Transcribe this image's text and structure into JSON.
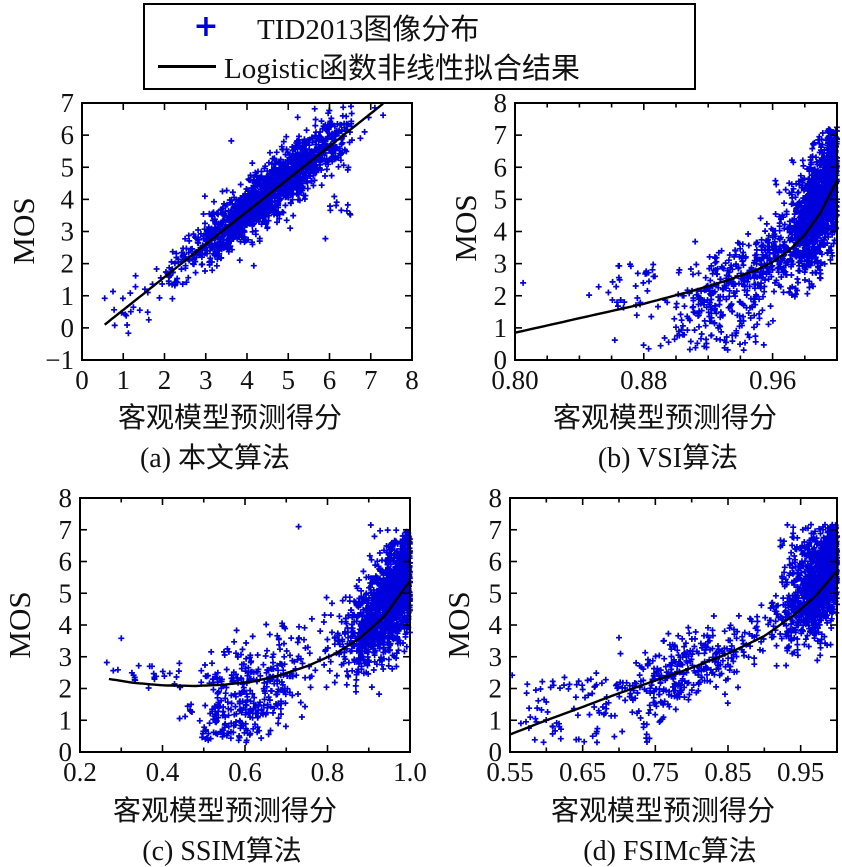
{
  "figure": {
    "background": "#ffffff",
    "scatter_color": "#0000dd",
    "line_color": "#000000",
    "axis_color": "#000000"
  },
  "legend": {
    "entries": [
      {
        "symbol": "+",
        "marker": "plus-marker",
        "color": "#0000dd",
        "label": "TID2013图像分布"
      },
      {
        "symbol": "—",
        "marker": "line-marker",
        "color": "#000000",
        "label": "Logistic函数非线性拟合结果"
      }
    ]
  },
  "chart_data": [
    {
      "id": "a",
      "type": "scatter",
      "caption": "(a) 本文算法",
      "xlabel": "客观模型预测得分",
      "ylabel": "MOS",
      "xlim": [
        0,
        8
      ],
      "ylim": [
        -1,
        7
      ],
      "xticks": [
        0,
        1,
        2,
        3,
        4,
        5,
        6,
        7,
        8
      ],
      "xtick_labels": [
        [
          0,
          "0"
        ],
        [
          1,
          "1"
        ],
        [
          2,
          "2"
        ],
        [
          3,
          "3"
        ],
        [
          4,
          "4"
        ],
        [
          5,
          "5"
        ],
        [
          6,
          "6"
        ],
        [
          7,
          "7"
        ],
        [
          8,
          "8"
        ]
      ],
      "yticks": [
        -1,
        0,
        1,
        2,
        3,
        4,
        5,
        6,
        7
      ],
      "ytick_labels": [
        [
          -1,
          "−1"
        ],
        [
          0,
          "0"
        ],
        [
          1,
          "1"
        ],
        [
          2,
          "2"
        ],
        [
          3,
          "3"
        ],
        [
          4,
          "4"
        ],
        [
          5,
          "5"
        ],
        [
          6,
          "6"
        ],
        [
          7,
          "7"
        ]
      ],
      "fit_curve": [
        [
          0.55,
          0.1
        ],
        [
          1.6,
          1.17
        ],
        [
          2.8,
          2.4
        ],
        [
          4.0,
          3.62
        ],
        [
          5.2,
          4.84
        ],
        [
          6.4,
          6.06
        ],
        [
          7.3,
          6.98
        ]
      ],
      "scatter_model": {
        "seed": 11,
        "clusters": [
          {
            "n": 1500,
            "x": {
              "d": "norm",
              "mu": 4.55,
              "sd": 1.05,
              "clip": [
                2.05,
                6.55
              ]
            },
            "y": {
              "d": "curve",
              "off": 0.05,
              "sd": 0.42,
              "clip": [
                -0.5,
                6.9
              ]
            }
          },
          {
            "n": 70,
            "x": {
              "d": "norm",
              "mu": 4.9,
              "sd": 0.9,
              "clip": [
                2.3,
                6.6
              ]
            },
            "y": {
              "d": "curve",
              "off": 0,
              "sd": 0.8,
              "clip": [
                0.2,
                6.9
              ]
            }
          },
          {
            "n": 26,
            "x": {
              "d": "unif",
              "lo": 0.7,
              "hi": 2.4
            },
            "y": {
              "d": "curve",
              "off": -0.1,
              "sd": 0.45,
              "clip": [
                -0.2,
                2.6
              ]
            }
          },
          {
            "n": 10,
            "x": {
              "d": "unif",
              "lo": 5.8,
              "hi": 6.6
            },
            "y": {
              "d": "unif",
              "lo": 3.5,
              "hi": 4.1
            }
          }
        ],
        "outliers": [
          [
            0.55,
            0.92
          ],
          [
            1.05,
            0.42
          ],
          [
            1.3,
            1.62
          ],
          [
            1.62,
            0.25
          ],
          [
            2.98,
            4.1
          ],
          [
            3.62,
            5.82
          ],
          [
            5.9,
            2.78
          ],
          [
            6.95,
            6.55
          ],
          [
            7.1,
            6.85
          ],
          [
            7.3,
            6.62
          ],
          [
            6.75,
            5.9
          ],
          [
            6.85,
            6.1
          ]
        ]
      }
    },
    {
      "id": "b",
      "type": "scatter",
      "caption": "(b) VSI算法",
      "xlabel": "客观模型预测得分",
      "ylabel": "MOS",
      "xlim": [
        0.8,
        1.0
      ],
      "ylim": [
        0,
        8
      ],
      "xticks": [
        0.8,
        0.82,
        0.84,
        0.86,
        0.88,
        0.9,
        0.92,
        0.94,
        0.96,
        0.98,
        1.0
      ],
      "xtick_labels": [
        [
          0.8,
          "0.80"
        ],
        [
          0.88,
          "0.88"
        ],
        [
          0.96,
          "0.96"
        ]
      ],
      "yticks": [
        0,
        1,
        2,
        3,
        4,
        5,
        6,
        7,
        8
      ],
      "ytick_labels": [
        [
          0,
          "0"
        ],
        [
          1,
          "1"
        ],
        [
          2,
          "2"
        ],
        [
          3,
          "3"
        ],
        [
          4,
          "4"
        ],
        [
          5,
          "5"
        ],
        [
          6,
          "6"
        ],
        [
          7,
          "7"
        ],
        [
          8,
          "8"
        ]
      ],
      "fit_curve": [
        [
          0.8,
          0.85
        ],
        [
          0.84,
          1.3
        ],
        [
          0.88,
          1.75
        ],
        [
          0.91,
          2.15
        ],
        [
          0.93,
          2.45
        ],
        [
          0.95,
          2.8
        ],
        [
          0.96,
          3.05
        ],
        [
          0.97,
          3.4
        ],
        [
          0.98,
          3.9
        ],
        [
          0.99,
          4.6
        ],
        [
          1.0,
          5.6
        ]
      ],
      "scatter_model": {
        "seed": 22,
        "clusters": [
          {
            "n": 1250,
            "x": {
              "d": "edge",
              "mu": 1.0,
              "sd": 0.016,
              "clip": [
                0.952,
                1.0
              ]
            },
            "y": {
              "d": "curve",
              "off": 0.35,
              "sd": 0.92,
              "clip": [
                1.9,
                7.25
              ]
            }
          },
          {
            "n": 300,
            "x": {
              "d": "norm",
              "mu": 0.945,
              "sd": 0.018,
              "clip": [
                0.895,
                0.985
              ]
            },
            "y": {
              "d": "curve",
              "off": 0,
              "sd": 0.55,
              "clip": [
                0.9,
                4.6
              ]
            }
          },
          {
            "n": 120,
            "x": {
              "d": "norm",
              "mu": 0.925,
              "sd": 0.02,
              "clip": [
                0.875,
                0.965
              ]
            },
            "y": {
              "d": "unif",
              "lo": 0.3,
              "hi": 2.0
            }
          },
          {
            "n": 45,
            "x": {
              "d": "unif",
              "lo": 0.86,
              "hi": 0.925
            },
            "y": {
              "d": "unif",
              "lo": 1.6,
              "hi": 3.0
            }
          }
        ],
        "outliers": [
          [
            0.805,
            2.4
          ],
          [
            0.846,
            2.02
          ],
          [
            0.852,
            2.28
          ],
          [
            0.862,
            0.62
          ],
          [
            0.872,
            2.92
          ],
          [
            0.876,
            1.93
          ],
          [
            0.883,
            0.35
          ],
          [
            0.9,
            1.02
          ],
          [
            0.886,
            2.6
          ],
          [
            0.858,
            2.1
          ]
        ]
      }
    },
    {
      "id": "c",
      "type": "scatter",
      "caption": "(c) SSIM算法",
      "xlabel": "客观模型预测得分",
      "ylabel": "MOS",
      "xlim": [
        0.2,
        1.0
      ],
      "ylim": [
        0,
        8
      ],
      "xticks": [
        0.2,
        0.3,
        0.4,
        0.5,
        0.6,
        0.7,
        0.8,
        0.9,
        1.0
      ],
      "xtick_labels": [
        [
          0.2,
          "0.2"
        ],
        [
          0.4,
          "0.4"
        ],
        [
          0.6,
          "0.6"
        ],
        [
          0.8,
          "0.8"
        ],
        [
          1.0,
          "1.0"
        ]
      ],
      "yticks": [
        0,
        1,
        2,
        3,
        4,
        5,
        6,
        7,
        8
      ],
      "ytick_labels": [
        [
          0,
          "0"
        ],
        [
          1,
          "1"
        ],
        [
          2,
          "2"
        ],
        [
          3,
          "3"
        ],
        [
          4,
          "4"
        ],
        [
          5,
          "5"
        ],
        [
          6,
          "6"
        ],
        [
          7,
          "7"
        ],
        [
          8,
          "8"
        ]
      ],
      "fit_curve": [
        [
          0.27,
          2.3
        ],
        [
          0.33,
          2.18
        ],
        [
          0.4,
          2.1
        ],
        [
          0.48,
          2.08
        ],
        [
          0.55,
          2.12
        ],
        [
          0.62,
          2.22
        ],
        [
          0.68,
          2.4
        ],
        [
          0.75,
          2.7
        ],
        [
          0.82,
          3.1
        ],
        [
          0.88,
          3.6
        ],
        [
          0.94,
          4.3
        ],
        [
          1.0,
          5.4
        ]
      ],
      "scatter_model": {
        "seed": 33,
        "clusters": [
          {
            "n": 1400,
            "x": {
              "d": "edge",
              "mu": 1.0,
              "sd": 0.075,
              "clip": [
                0.7,
                1.0
              ]
            },
            "y": {
              "d": "curve",
              "off": 0.25,
              "sd": 0.8,
              "clip": [
                1.6,
                7.0
              ]
            }
          },
          {
            "n": 260,
            "x": {
              "d": "norm",
              "mu": 0.63,
              "sd": 0.07,
              "clip": [
                0.46,
                0.78
              ]
            },
            "y": {
              "d": "curve",
              "off": -0.1,
              "sd": 0.7,
              "clip": [
                0.7,
                4.3
              ]
            }
          },
          {
            "n": 110,
            "x": {
              "d": "norm",
              "mu": 0.565,
              "sd": 0.055,
              "clip": [
                0.44,
                0.72
              ]
            },
            "y": {
              "d": "unif",
              "lo": 0.3,
              "hi": 1.6
            }
          },
          {
            "n": 22,
            "x": {
              "d": "unif",
              "lo": 0.28,
              "hi": 0.46
            },
            "y": {
              "d": "unif",
              "lo": 2.0,
              "hi": 2.9
            }
          }
        ],
        "outliers": [
          [
            0.3,
            3.58
          ],
          [
            0.265,
            2.82
          ],
          [
            0.33,
            2.42
          ],
          [
            0.73,
            7.1
          ],
          [
            0.905,
            7.15
          ],
          [
            0.69,
            4.05
          ],
          [
            0.66,
            3.7
          ],
          [
            0.38,
            2.35
          ]
        ]
      }
    },
    {
      "id": "d",
      "type": "scatter",
      "caption": "(d) FSIMc算法",
      "xlabel": "客观模型预测得分",
      "ylabel": "MOS",
      "xlim": [
        0.55,
        1.0
      ],
      "ylim": [
        0,
        8
      ],
      "xticks": [
        0.55,
        0.6,
        0.65,
        0.7,
        0.75,
        0.8,
        0.85,
        0.9,
        0.95,
        1.0
      ],
      "xtick_labels": [
        [
          0.55,
          "0.55"
        ],
        [
          0.65,
          "0.65"
        ],
        [
          0.75,
          "0.75"
        ],
        [
          0.85,
          "0.85"
        ],
        [
          0.95,
          "0.95"
        ]
      ],
      "yticks": [
        0,
        1,
        2,
        3,
        4,
        5,
        6,
        7,
        8
      ],
      "ytick_labels": [
        [
          0,
          "0"
        ],
        [
          1,
          "1"
        ],
        [
          2,
          "2"
        ],
        [
          3,
          "3"
        ],
        [
          4,
          "4"
        ],
        [
          5,
          "5"
        ],
        [
          6,
          "6"
        ],
        [
          7,
          "7"
        ],
        [
          8,
          "8"
        ]
      ],
      "fit_curve": [
        [
          0.55,
          0.55
        ],
        [
          0.6,
          1.0
        ],
        [
          0.65,
          1.42
        ],
        [
          0.7,
          1.85
        ],
        [
          0.75,
          2.25
        ],
        [
          0.8,
          2.65
        ],
        [
          0.85,
          3.1
        ],
        [
          0.9,
          3.65
        ],
        [
          0.94,
          4.3
        ],
        [
          0.97,
          4.9
        ],
        [
          1.0,
          5.7
        ]
      ],
      "scatter_model": {
        "seed": 44,
        "clusters": [
          {
            "n": 1250,
            "x": {
              "d": "edge",
              "mu": 1.0,
              "sd": 0.035,
              "clip": [
                0.875,
                1.0
              ]
            },
            "y": {
              "d": "curve",
              "off": 0.3,
              "sd": 0.75,
              "clip": [
                2.2,
                7.2
              ]
            }
          },
          {
            "n": 330,
            "x": {
              "d": "norm",
              "mu": 0.8,
              "sd": 0.055,
              "clip": [
                0.66,
                0.92
              ]
            },
            "y": {
              "d": "curve",
              "off": 0,
              "sd": 0.55,
              "clip": [
                0.8,
                4.6
              ]
            }
          },
          {
            "n": 90,
            "x": {
              "d": "unif",
              "lo": 0.57,
              "hi": 0.76
            },
            "y": {
              "d": "unif",
              "lo": 0.3,
              "hi": 2.3
            }
          },
          {
            "n": 28,
            "x": {
              "d": "norm",
              "mu": 0.95,
              "sd": 0.02,
              "clip": [
                0.91,
                0.99
              ]
            },
            "y": {
              "d": "unif",
              "lo": 6.2,
              "hi": 7.2
            }
          }
        ],
        "outliers": [
          [
            0.553,
            2.42
          ],
          [
            0.578,
            1.1
          ],
          [
            0.585,
            1.05
          ],
          [
            0.61,
            2.1
          ],
          [
            0.625,
            2.35
          ],
          [
            0.7,
            3.6
          ],
          [
            0.565,
            0.9
          ],
          [
            0.572,
            0.95
          ]
        ]
      }
    }
  ]
}
